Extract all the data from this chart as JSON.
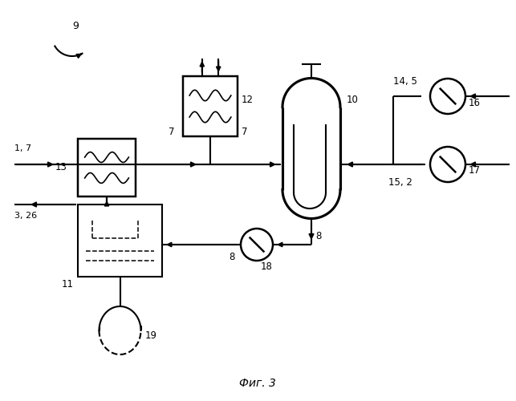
{
  "title": "Фиг. 3",
  "background_color": "#ffffff",
  "line_color": "#000000",
  "line_width": 1.5
}
